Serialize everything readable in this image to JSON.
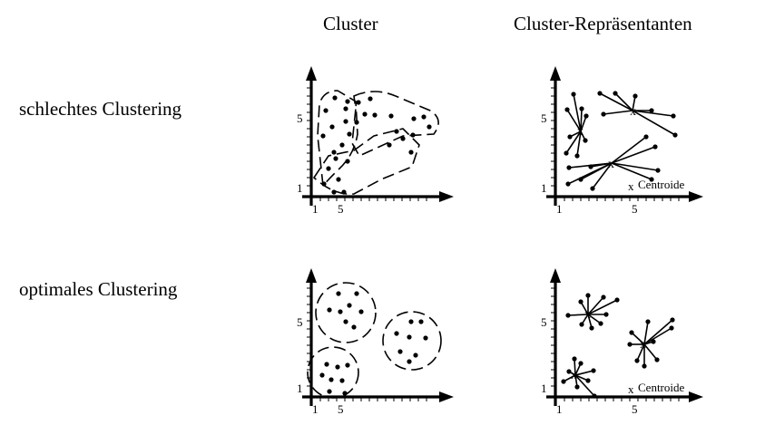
{
  "columns": {
    "cluster": "Cluster",
    "representatives": "Cluster-Repräsentanten"
  },
  "rows": {
    "bad": "schlechtes Clustering",
    "optimal": "optimales Clustering"
  },
  "axis": {
    "tick_x1": "1",
    "tick_x5": "5",
    "tick_y1": "1",
    "tick_y5": "5"
  },
  "legend": {
    "marker": "x",
    "label": "Centroide"
  }
}
